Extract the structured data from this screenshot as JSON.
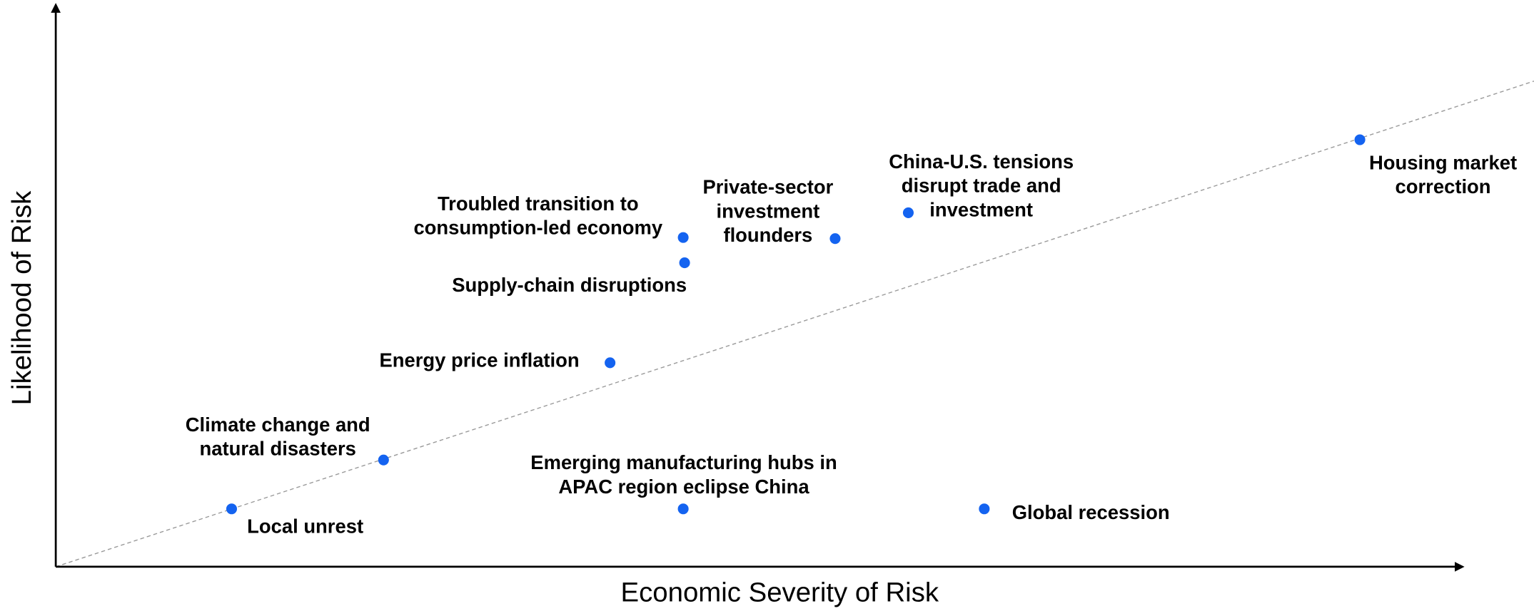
{
  "chart_data": {
    "type": "scatter",
    "x_label": "Economic Severity of Risk",
    "y_label": "Likelihood of Risk",
    "xlim": [
      0,
      100
    ],
    "ylim": [
      0,
      100
    ],
    "color": "#1463f0",
    "labels": [
      [
        "Local unrest"
      ],
      [
        "Climate change and",
        "natural disasters"
      ],
      [
        "Energy price inflation"
      ],
      [
        "Troubled transition to",
        "consumption-led economy"
      ],
      [
        "Supply-chain disruptions"
      ],
      [
        "Private-sector",
        "investment",
        "flounders"
      ],
      [
        "China-U.S. tensions",
        "disrupt trade and",
        "investment"
      ],
      [
        "Housing market",
        "correction"
      ],
      [
        "Emerging manufacturing hubs in",
        "APAC region eclipse China"
      ],
      [
        "Global recession"
      ]
    ],
    "x": [
      12.5,
      23.3,
      39.4,
      44.6,
      44.7,
      55.4,
      60.6,
      92.7,
      44.6,
      66.0
    ],
    "y": [
      10.3,
      19.0,
      36.3,
      58.6,
      54.1,
      58.4,
      63.0,
      76.0,
      10.3,
      10.3
    ]
  }
}
